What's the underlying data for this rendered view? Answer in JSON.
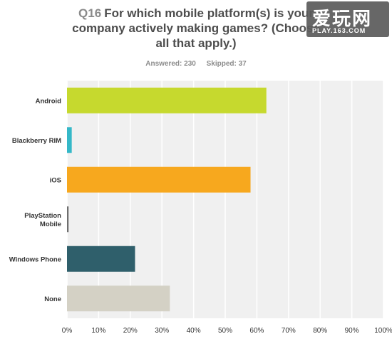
{
  "header": {
    "question_number": "Q16",
    "title_lines": [
      "For which mobile platform(s) is your",
      "company actively making games? (Choose",
      "all that apply.)"
    ],
    "answered": "Answered: 230",
    "skipped": "Skipped: 37"
  },
  "watermark": {
    "big": "爱玩网",
    "small": "PLAY.163.COM"
  },
  "chart_data": {
    "type": "bar",
    "orientation": "horizontal",
    "categories": [
      "Android",
      "Blackberry RIM",
      "iOS",
      "PlayStation Mobile",
      "Windows Phone",
      "None"
    ],
    "category_label_lines": [
      [
        "Android"
      ],
      [
        "Blackberry RIM"
      ],
      [
        "iOS"
      ],
      [
        "PlayStation",
        "Mobile"
      ],
      [
        "Windows Phone"
      ],
      [
        "None"
      ]
    ],
    "values": [
      63,
      1.5,
      58,
      0.5,
      21.5,
      32.5
    ],
    "colors": [
      "#c6d92e",
      "#35b8c8",
      "#f7a81e",
      "#6e6e6e",
      "#2f5f6b",
      "#d4d1c5"
    ],
    "xlim": [
      0,
      100
    ],
    "xticks": [
      0,
      10,
      20,
      30,
      40,
      50,
      60,
      70,
      80,
      90,
      100
    ],
    "xtick_labels": [
      "0%",
      "10%",
      "20%",
      "30%",
      "40%",
      "50%",
      "60%",
      "70%",
      "80%",
      "90%",
      "100%"
    ],
    "grid": true,
    "plot_background": "#f0f0f0",
    "grid_color": "#ffffff"
  }
}
